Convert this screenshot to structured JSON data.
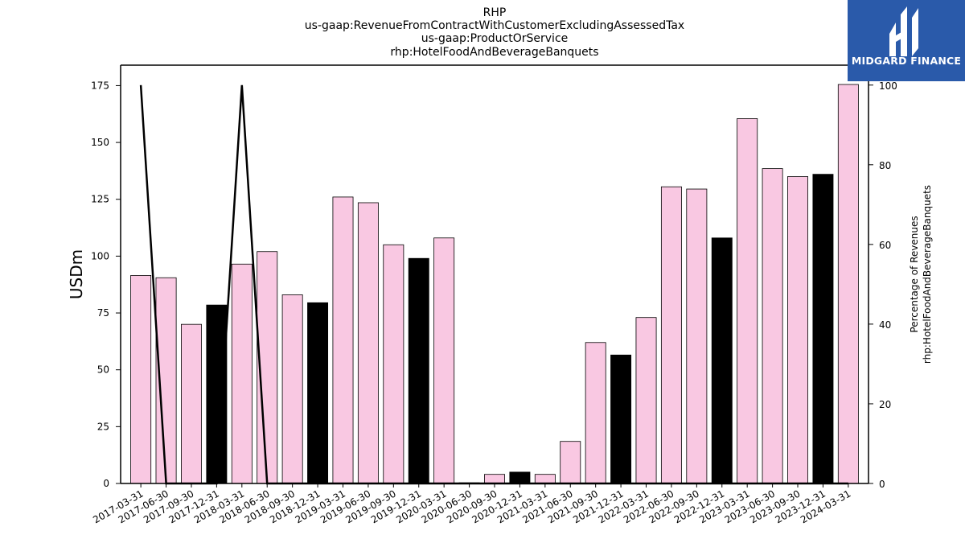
{
  "chart_data": {
    "type": "bar",
    "title_lines": [
      "RHP",
      "us-gaap:RevenueFromContractWithCustomerExcludingAssessedTax",
      "us-gaap:ProductOrService",
      "rhp:HotelFoodAndBeverageBanquets"
    ],
    "ylabel": "USDm",
    "y2label_lines": [
      "Percentage of Revenues",
      "rhp:HotelFoodAndBeverageBanquets"
    ],
    "ylim": [
      0,
      184
    ],
    "y2lim": [
      0,
      105
    ],
    "yticks": [
      0,
      25,
      50,
      75,
      100,
      125,
      150,
      175
    ],
    "y2ticks": [
      0,
      20,
      40,
      60,
      80,
      100
    ],
    "categories": [
      "2017-03-31",
      "2017-06-30",
      "2017-09-30",
      "2017-12-31",
      "2018-03-31",
      "2018-06-30",
      "2018-09-30",
      "2018-12-31",
      "2019-03-31",
      "2019-06-30",
      "2019-09-30",
      "2019-12-31",
      "2020-03-31",
      "2020-06-30",
      "2020-09-30",
      "2020-12-31",
      "2021-03-31",
      "2021-06-30",
      "2021-09-30",
      "2021-12-31",
      "2022-03-31",
      "2022-06-30",
      "2022-09-30",
      "2022-12-31",
      "2023-03-31",
      "2023-06-30",
      "2023-09-30",
      "2023-12-31",
      "2024-03-31"
    ],
    "values": [
      91.5,
      90.5,
      70,
      78.5,
      96.5,
      102,
      83,
      79.5,
      126,
      123.5,
      105,
      99,
      108,
      0.3,
      4,
      5,
      4,
      18.5,
      62,
      56.5,
      73,
      130.5,
      129.5,
      108,
      160.5,
      138.5,
      135,
      136,
      175.5
    ],
    "bar_colors": [
      "#f9c8e2",
      "#f9c8e2",
      "#f9c8e2",
      "#000000",
      "#f9c8e2",
      "#f9c8e2",
      "#f9c8e2",
      "#000000",
      "#f9c8e2",
      "#f9c8e2",
      "#f9c8e2",
      "#000000",
      "#f9c8e2",
      "#f9c8e2",
      "#f9c8e2",
      "#000000",
      "#f9c8e2",
      "#f9c8e2",
      "#f9c8e2",
      "#000000",
      "#f9c8e2",
      "#f9c8e2",
      "#f9c8e2",
      "#000000",
      "#f9c8e2",
      "#f9c8e2",
      "#f9c8e2",
      "#000000",
      "#f9c8e2"
    ],
    "percentage_line": [
      100,
      0,
      0,
      0,
      100,
      0,
      0,
      0,
      0,
      0,
      0,
      0,
      0,
      0,
      0,
      0,
      0,
      0,
      0,
      0,
      0,
      0,
      0,
      0,
      0,
      0,
      0,
      0,
      0
    ],
    "line_color": "#000000",
    "grid": false
  },
  "logo": {
    "text": "MIDGARD FINANCE",
    "background": "#2a5aaa"
  }
}
